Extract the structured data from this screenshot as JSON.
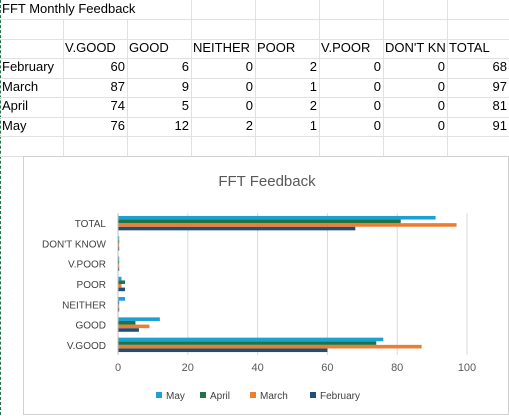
{
  "sheet": {
    "title": "FFT Monthly Feedback",
    "headers": [
      "V.GOOD",
      "GOOD",
      "NEITHER",
      "POOR",
      "V.POOR",
      "DON'T KN",
      "TOTAL"
    ],
    "rows": [
      {
        "label": "February",
        "values": [
          "60",
          "6",
          "0",
          "2",
          "0",
          "0",
          "68"
        ]
      },
      {
        "label": "March",
        "values": [
          "87",
          "9",
          "0",
          "1",
          "0",
          "0",
          "97"
        ]
      },
      {
        "label": "April",
        "values": [
          "74",
          "5",
          "0",
          "2",
          "0",
          "0",
          "81"
        ]
      },
      {
        "label": "May",
        "values": [
          "76",
          "12",
          "2",
          "1",
          "0",
          "0",
          "91"
        ]
      }
    ]
  },
  "chart_data": {
    "type": "bar",
    "orientation": "horizontal",
    "title": "FFT Feedback",
    "categories": [
      "V.GOOD",
      "GOOD",
      "NEITHER",
      "POOR",
      "V.POOR",
      "DON'T KNOW",
      "TOTAL"
    ],
    "series": [
      {
        "name": "February",
        "color": "#1f4e79",
        "values": [
          60,
          6,
          0,
          2,
          0,
          0,
          68
        ]
      },
      {
        "name": "March",
        "color": "#ed7d31",
        "values": [
          87,
          9,
          0,
          1,
          0,
          0,
          97
        ]
      },
      {
        "name": "April",
        "color": "#217346",
        "values": [
          74,
          5,
          0,
          2,
          0,
          0,
          81
        ]
      },
      {
        "name": "May",
        "color": "#1ba1d2",
        "values": [
          76,
          12,
          2,
          1,
          0,
          0,
          91
        ]
      }
    ],
    "xlim": [
      0,
      100
    ],
    "xticks": [
      "0",
      "20",
      "40",
      "60",
      "80",
      "100"
    ],
    "grid": true,
    "legend_position": "bottom",
    "legend": [
      "May",
      "April",
      "March",
      "February"
    ]
  }
}
